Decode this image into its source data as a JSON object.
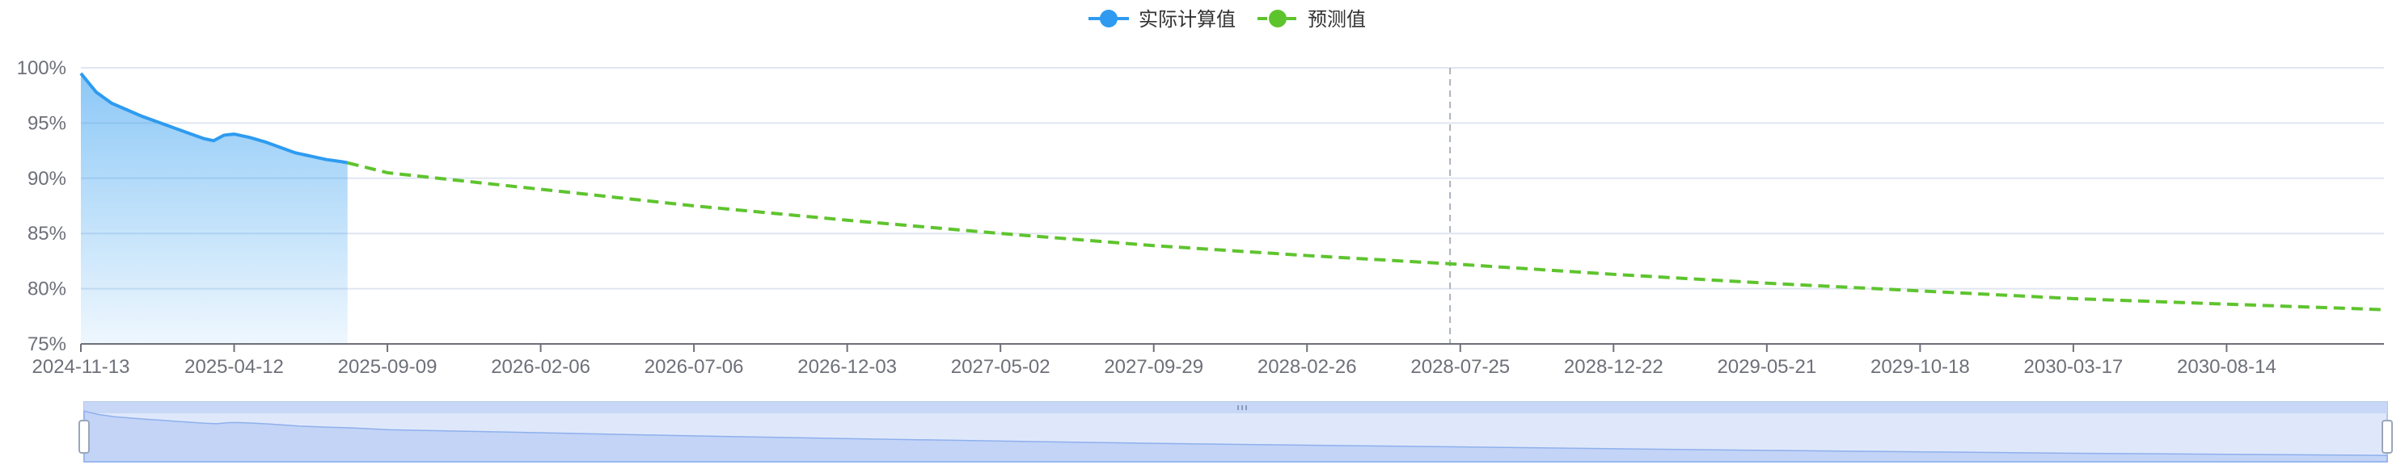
{
  "colors": {
    "actual": "#2e9bf0",
    "forecast": "#5ec42e",
    "axis": "#6e7079",
    "grid": "#e0e6f1",
    "marker_line": "#aab2c0",
    "zoom_fill": "#dfe8fb",
    "zoom_border": "#b7c7ea"
  },
  "chart_data": {
    "type": "line",
    "grid": true,
    "legend_position": "top-center",
    "xlabel": "",
    "ylabel": "",
    "y_unit": "%",
    "ylim": [
      75,
      100
    ],
    "y_ticks": [
      "100%",
      "95%",
      "90%",
      "85%",
      "80%",
      "75%"
    ],
    "x_tick_labels": [
      "2024-11-13",
      "2025-04-12",
      "2025-09-09",
      "2026-02-06",
      "2026-07-06",
      "2026-12-03",
      "2027-05-02",
      "2027-09-29",
      "2028-02-26",
      "2028-07-25",
      "2028-12-22",
      "2029-05-21",
      "2029-10-18",
      "2030-03-17",
      "2030-08-14"
    ],
    "x_range": [
      "2024-11-13",
      "2031-01-15"
    ],
    "reference_line_date": "2028-07-15",
    "series": [
      {
        "name": "实际计算值",
        "style": "solid-area",
        "points": [
          [
            "2024-11-13",
            99.5
          ],
          [
            "2024-11-28",
            97.8
          ],
          [
            "2024-12-13",
            96.8
          ],
          [
            "2024-12-28",
            96.2
          ],
          [
            "2025-01-12",
            95.6
          ],
          [
            "2025-01-27",
            95.1
          ],
          [
            "2025-02-11",
            94.6
          ],
          [
            "2025-02-26",
            94.1
          ],
          [
            "2025-03-13",
            93.6
          ],
          [
            "2025-03-23",
            93.4
          ],
          [
            "2025-04-02",
            93.9
          ],
          [
            "2025-04-12",
            94.0
          ],
          [
            "2025-04-27",
            93.7
          ],
          [
            "2025-05-12",
            93.3
          ],
          [
            "2025-05-27",
            92.8
          ],
          [
            "2025-06-11",
            92.3
          ],
          [
            "2025-06-26",
            92.0
          ],
          [
            "2025-07-11",
            91.7
          ],
          [
            "2025-07-26",
            91.5
          ],
          [
            "2025-08-01",
            91.4
          ]
        ]
      },
      {
        "name": "预测值",
        "style": "dashed",
        "points": [
          [
            "2025-08-01",
            91.4
          ],
          [
            "2025-09-09",
            90.5
          ],
          [
            "2026-02-06",
            89.0
          ],
          [
            "2026-07-06",
            87.5
          ],
          [
            "2026-12-03",
            86.2
          ],
          [
            "2027-05-02",
            85.0
          ],
          [
            "2027-09-29",
            83.9
          ],
          [
            "2028-02-26",
            83.0
          ],
          [
            "2028-07-25",
            82.2
          ],
          [
            "2028-12-22",
            81.3
          ],
          [
            "2029-05-21",
            80.5
          ],
          [
            "2029-10-18",
            79.8
          ],
          [
            "2030-03-17",
            79.1
          ],
          [
            "2030-08-14",
            78.6
          ],
          [
            "2031-01-15",
            78.1
          ]
        ]
      }
    ]
  }
}
